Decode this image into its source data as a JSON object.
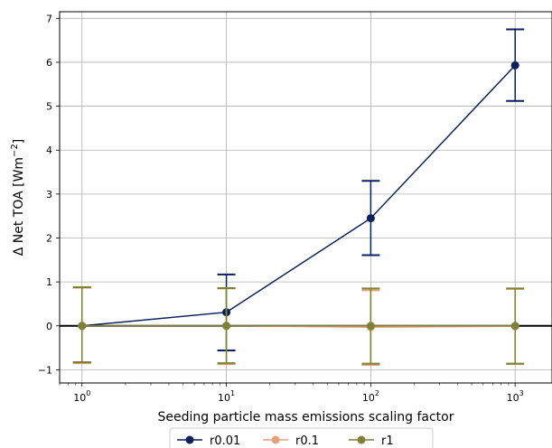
{
  "chart_data": {
    "type": "line",
    "xscale": "log",
    "xlabel": "Seeding particle mass emissions scaling factor",
    "ylabel_prefix": "Δ Net TOA [Wm",
    "ylabel_exp": "−2",
    "ylabel_suffix": "]",
    "xlim": [
      0.7,
      1800
    ],
    "ylim": [
      -1.3,
      7.15
    ],
    "x_ticks": [
      {
        "value": 1,
        "base": "10",
        "exp": "0"
      },
      {
        "value": 10,
        "base": "10",
        "exp": "1"
      },
      {
        "value": 100,
        "base": "10",
        "exp": "2"
      },
      {
        "value": 1000,
        "base": "10",
        "exp": "3"
      }
    ],
    "y_ticks": [
      {
        "value": -1,
        "label": "−1"
      },
      {
        "value": 0,
        "label": "0"
      },
      {
        "value": 1,
        "label": "1"
      },
      {
        "value": 2,
        "label": "2"
      },
      {
        "value": 3,
        "label": "3"
      },
      {
        "value": 4,
        "label": "4"
      },
      {
        "value": 5,
        "label": "5"
      },
      {
        "value": 6,
        "label": "6"
      },
      {
        "value": 7,
        "label": "7"
      }
    ],
    "grid": true,
    "zero_line": true,
    "legend_position": "bottom-center",
    "x": [
      1,
      10,
      100,
      1000
    ],
    "series": [
      {
        "name": "r0.01",
        "color": "#0b1f5c",
        "values": [
          0.0,
          0.31,
          2.45,
          5.93
        ],
        "error_low": [
          -0.83,
          -0.56,
          1.61,
          5.12
        ],
        "error_high": [
          0.87,
          1.17,
          3.3,
          6.75
        ]
      },
      {
        "name": "r0.1",
        "color": "#e8a07a",
        "values": [
          0.0,
          0.0,
          -0.03,
          -0.01
        ],
        "error_low": [
          -0.85,
          -0.87,
          -0.89,
          -0.87
        ],
        "error_high": [
          0.87,
          0.85,
          0.81,
          0.84
        ]
      },
      {
        "name": "r1",
        "color": "#7d8235",
        "values": [
          0.0,
          0.0,
          0.0,
          0.0
        ],
        "error_low": [
          -0.83,
          -0.85,
          -0.86,
          -0.86
        ],
        "error_high": [
          0.88,
          0.86,
          0.85,
          0.85
        ]
      }
    ]
  }
}
